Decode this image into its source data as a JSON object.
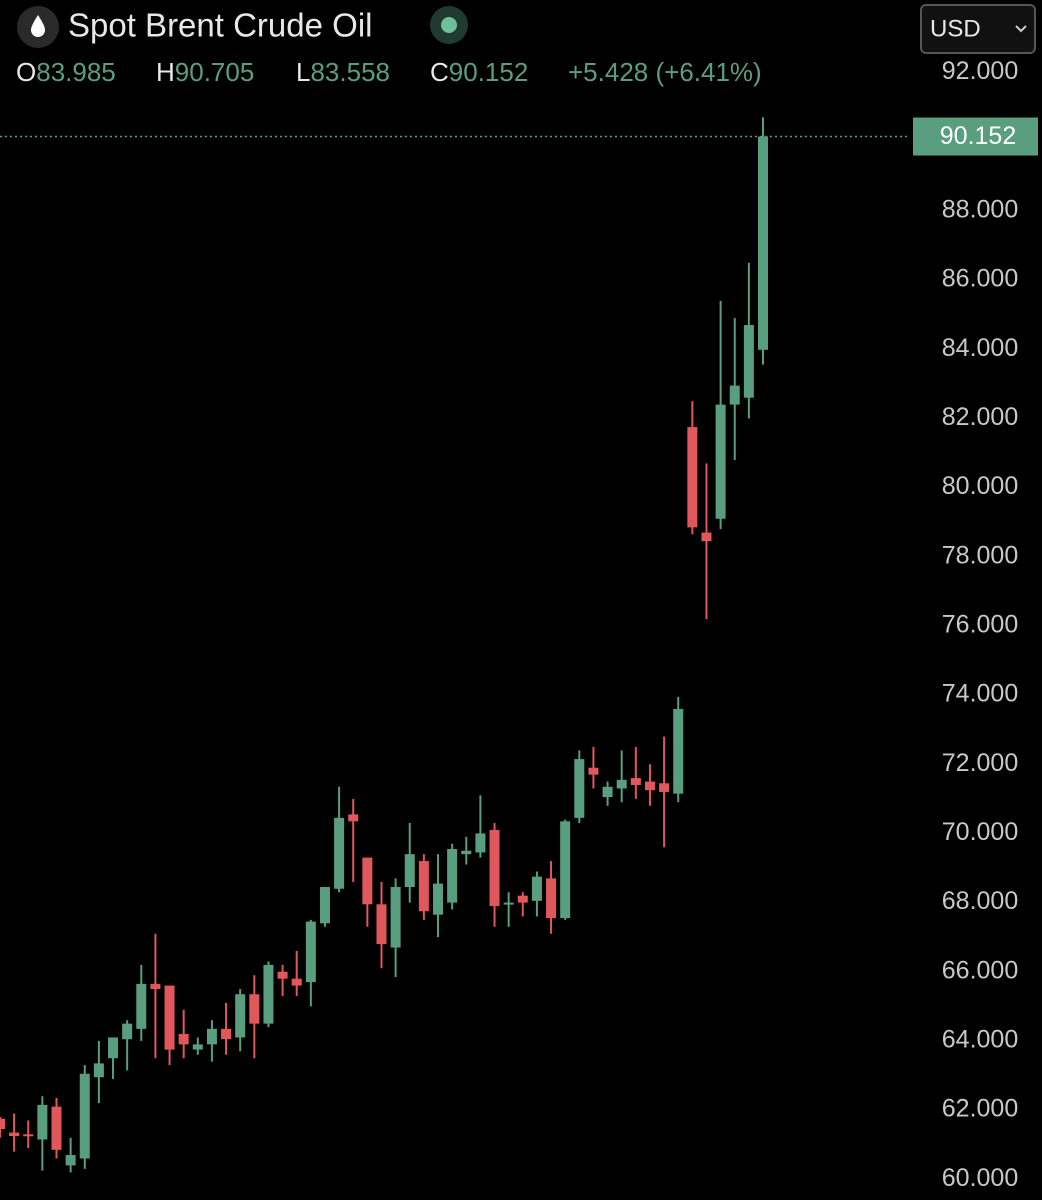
{
  "header": {
    "title": "Spot Brent Crude Oil",
    "ohlc_labels": [
      "O",
      "H",
      "L",
      "C"
    ],
    "change": "+5.428 (+6.41%)",
    "currency": "USD"
  },
  "chart_data": {
    "type": "candlestick",
    "up_color": "#5a9e80",
    "down_color": "#e0585b",
    "ylim": [
      59.4,
      94.1
    ],
    "yticks": [
      {
        "value": 60,
        "label": "60.000"
      },
      {
        "value": 62,
        "label": "62.000"
      },
      {
        "value": 64,
        "label": "64.000"
      },
      {
        "value": 66,
        "label": "66.000"
      },
      {
        "value": 68,
        "label": "68.000"
      },
      {
        "value": 70,
        "label": "70.000"
      },
      {
        "value": 72,
        "label": "72.000"
      },
      {
        "value": 74,
        "label": "74.000"
      },
      {
        "value": 76,
        "label": "76.000"
      },
      {
        "value": 78,
        "label": "78.000"
      },
      {
        "value": 80,
        "label": "80.000"
      },
      {
        "value": 82,
        "label": "82.000"
      },
      {
        "value": 84,
        "label": "84.000"
      },
      {
        "value": 86,
        "label": "86.000"
      },
      {
        "value": 88,
        "label": "88.000"
      },
      {
        "value": 90,
        "label": "90.000"
      },
      {
        "value": 92,
        "label": "92.000"
      }
    ],
    "open": [
      61.75,
      61.35,
      61.3,
      61.15,
      62.1,
      60.4,
      60.6,
      62.95,
      63.5,
      64.05,
      64.35,
      65.65,
      65.6,
      64.2,
      63.75,
      63.9,
      64.35,
      64.1,
      65.35,
      64.5,
      66.0,
      65.8,
      65.7,
      67.4,
      68.4,
      70.55,
      69.3,
      67.95,
      66.7,
      68.45,
      69.2,
      67.65,
      68.0,
      69.4,
      69.45,
      70.1,
      67.95,
      68.2,
      68.05,
      68.7,
      67.55,
      70.45,
      71.9,
      71.05,
      71.3,
      71.6,
      71.5,
      71.45,
      71.15,
      81.75,
      78.7,
      79.1,
      82.4,
      82.6,
      83.985
    ],
    "high": [
      61.8,
      61.9,
      61.7,
      62.4,
      62.35,
      61.2,
      63.3,
      64.0,
      64.1,
      64.6,
      66.2,
      67.1,
      65.6,
      64.9,
      64.1,
      64.6,
      65.1,
      65.5,
      65.9,
      66.3,
      66.2,
      66.6,
      67.5,
      68.45,
      71.35,
      71.0,
      69.3,
      68.6,
      68.7,
      70.3,
      69.4,
      69.4,
      69.7,
      69.9,
      71.1,
      70.3,
      68.3,
      68.3,
      68.9,
      69.2,
      70.4,
      72.4,
      72.5,
      71.5,
      72.4,
      72.5,
      72.0,
      72.8,
      73.95,
      82.5,
      80.7,
      85.4,
      84.9,
      86.5,
      90.705
    ],
    "low": [
      61.2,
      60.8,
      60.9,
      60.25,
      60.6,
      60.2,
      60.3,
      62.2,
      62.9,
      63.15,
      64.0,
      63.5,
      63.3,
      63.5,
      63.6,
      63.4,
      63.6,
      63.7,
      63.5,
      64.4,
      65.3,
      65.3,
      65.0,
      67.3,
      68.3,
      68.6,
      67.3,
      66.1,
      65.85,
      68.0,
      67.5,
      67.0,
      67.8,
      69.1,
      69.3,
      67.3,
      67.3,
      67.6,
      67.6,
      67.1,
      67.5,
      70.3,
      71.3,
      70.8,
      70.9,
      71.0,
      70.8,
      69.6,
      70.9,
      78.65,
      76.2,
      78.8,
      80.8,
      82.0,
      83.558
    ],
    "close": [
      61.45,
      61.25,
      61.25,
      62.15,
      60.85,
      60.7,
      63.05,
      63.35,
      64.1,
      64.5,
      65.65,
      65.5,
      63.75,
      63.9,
      63.9,
      64.35,
      64.05,
      65.35,
      64.5,
      66.2,
      65.8,
      65.6,
      67.45,
      68.45,
      70.45,
      70.35,
      67.95,
      66.8,
      68.45,
      69.4,
      67.75,
      68.55,
      69.55,
      69.5,
      70.0,
      67.9,
      68.0,
      68.0,
      68.75,
      67.55,
      70.35,
      72.15,
      71.7,
      71.35,
      71.55,
      71.4,
      71.25,
      71.2,
      73.6,
      78.85,
      78.45,
      82.4,
      82.95,
      84.7,
      90.152
    ]
  }
}
